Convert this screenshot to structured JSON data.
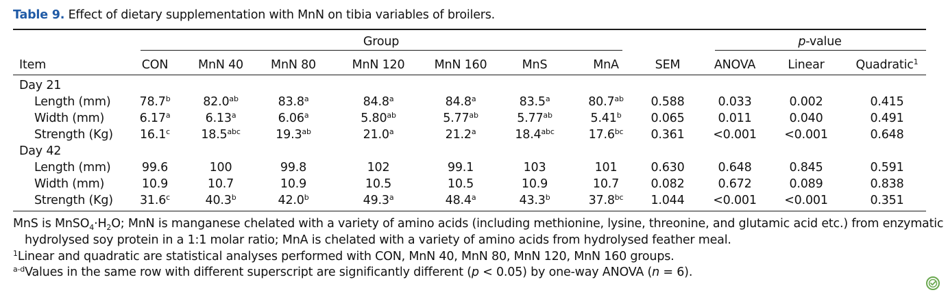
{
  "caption": {
    "label": "Table 9.",
    "text": "Effect of dietary supplementation with MnN on tibia variables of broilers."
  },
  "header": {
    "group_label": "Group",
    "pvalue_p": "p",
    "pvalue_rest": "-value",
    "item": "Item",
    "cols": [
      "CON",
      "MnN 40",
      "MnN 80",
      "MnN 120",
      "MnN 160",
      "MnS",
      "MnA"
    ],
    "sem": "SEM",
    "anova": "ANOVA",
    "linear": "Linear",
    "quadratic": "Quadratic",
    "quadratic_sup": "1"
  },
  "sections": [
    {
      "label": "Day 21",
      "rows": [
        {
          "item": "Length (mm)",
          "groups": [
            {
              "v": "78.7",
              "s": "b"
            },
            {
              "v": "82.0",
              "s": "ab"
            },
            {
              "v": "83.8",
              "s": "a"
            },
            {
              "v": "84.8",
              "s": "a"
            },
            {
              "v": "84.8",
              "s": "a"
            },
            {
              "v": "83.5",
              "s": "a"
            },
            {
              "v": "80.7",
              "s": "ab"
            }
          ],
          "sem": "0.588",
          "anova": "0.033",
          "linear": "0.002",
          "quadratic": "0.415"
        },
        {
          "item": "Width (mm)",
          "groups": [
            {
              "v": "6.17",
              "s": "a"
            },
            {
              "v": "6.13",
              "s": "a"
            },
            {
              "v": "6.06",
              "s": "a"
            },
            {
              "v": "5.80",
              "s": "ab"
            },
            {
              "v": "5.77",
              "s": "ab"
            },
            {
              "v": "5.77",
              "s": "ab"
            },
            {
              "v": "5.41",
              "s": "b"
            }
          ],
          "sem": "0.065",
          "anova": "0.011",
          "linear": "0.040",
          "quadratic": "0.491"
        },
        {
          "item": "Strength (Kg)",
          "groups": [
            {
              "v": "16.1",
              "s": "c"
            },
            {
              "v": "18.5",
              "s": "abc"
            },
            {
              "v": "19.3",
              "s": "ab"
            },
            {
              "v": "21.0",
              "s": "a"
            },
            {
              "v": "21.2",
              "s": "a"
            },
            {
              "v": "18.4",
              "s": "abc"
            },
            {
              "v": "17.6",
              "s": "bc"
            }
          ],
          "sem": "0.361",
          "anova": "<0.001",
          "linear": "<0.001",
          "quadratic": "0.648"
        }
      ]
    },
    {
      "label": "Day 42",
      "rows": [
        {
          "item": "Length (mm)",
          "groups": [
            {
              "v": "99.6",
              "s": ""
            },
            {
              "v": "100",
              "s": ""
            },
            {
              "v": "99.8",
              "s": ""
            },
            {
              "v": "102",
              "s": ""
            },
            {
              "v": "99.1",
              "s": ""
            },
            {
              "v": "103",
              "s": ""
            },
            {
              "v": "101",
              "s": ""
            }
          ],
          "sem": "0.630",
          "anova": "0.648",
          "linear": "0.845",
          "quadratic": "0.591"
        },
        {
          "item": "Width (mm)",
          "groups": [
            {
              "v": "10.9",
              "s": ""
            },
            {
              "v": "10.7",
              "s": ""
            },
            {
              "v": "10.9",
              "s": ""
            },
            {
              "v": "10.5",
              "s": ""
            },
            {
              "v": "10.5",
              "s": ""
            },
            {
              "v": "10.9",
              "s": ""
            },
            {
              "v": "10.7",
              "s": ""
            }
          ],
          "sem": "0.082",
          "anova": "0.672",
          "linear": "0.089",
          "quadratic": "0.838"
        },
        {
          "item": "Strength (Kg)",
          "groups": [
            {
              "v": "31.6",
              "s": "c"
            },
            {
              "v": "40.3",
              "s": "b"
            },
            {
              "v": "42.0",
              "s": "b"
            },
            {
              "v": "49.3",
              "s": "a"
            },
            {
              "v": "48.4",
              "s": "a"
            },
            {
              "v": "43.3",
              "s": "b"
            },
            {
              "v": "37.8",
              "s": "bc"
            }
          ],
          "sem": "1.044",
          "anova": "<0.001",
          "linear": "<0.001",
          "quadratic": "0.351"
        }
      ]
    }
  ],
  "footnotes": {
    "line1_a": "MnS is MnSO",
    "line1_sub1": "4",
    "line1_b": "·H",
    "line1_sub2": "2",
    "line1_c": "O; MnN is manganese chelated with a variety of amino acids (including methionine, lysine, threonine, and glutamic acid etc.) from enzymatic",
    "line2": "hydrolysed soy protein in a 1:1 molar ratio; MnA is chelated with a variety of amino acids from hydrolysed feather meal.",
    "line3_sup": "1",
    "line3": "Linear and quadratic are statistical analyses performed with CON, MnN 40, MnN 80, MnN 120, MnN 160 groups.",
    "line4_sup": "a-d",
    "line4_a": "Values in the same row with different superscript are significantly different (",
    "line4_p": "p",
    "line4_b": " < 0.05) by one-way ANOVA (",
    "line4_n": "n",
    "line4_c": " = 6)."
  },
  "colors": {
    "caption_label": "#1f5aa6",
    "badge": "#6aa84f"
  },
  "icons": {
    "badge": "open-access-check-icon"
  }
}
